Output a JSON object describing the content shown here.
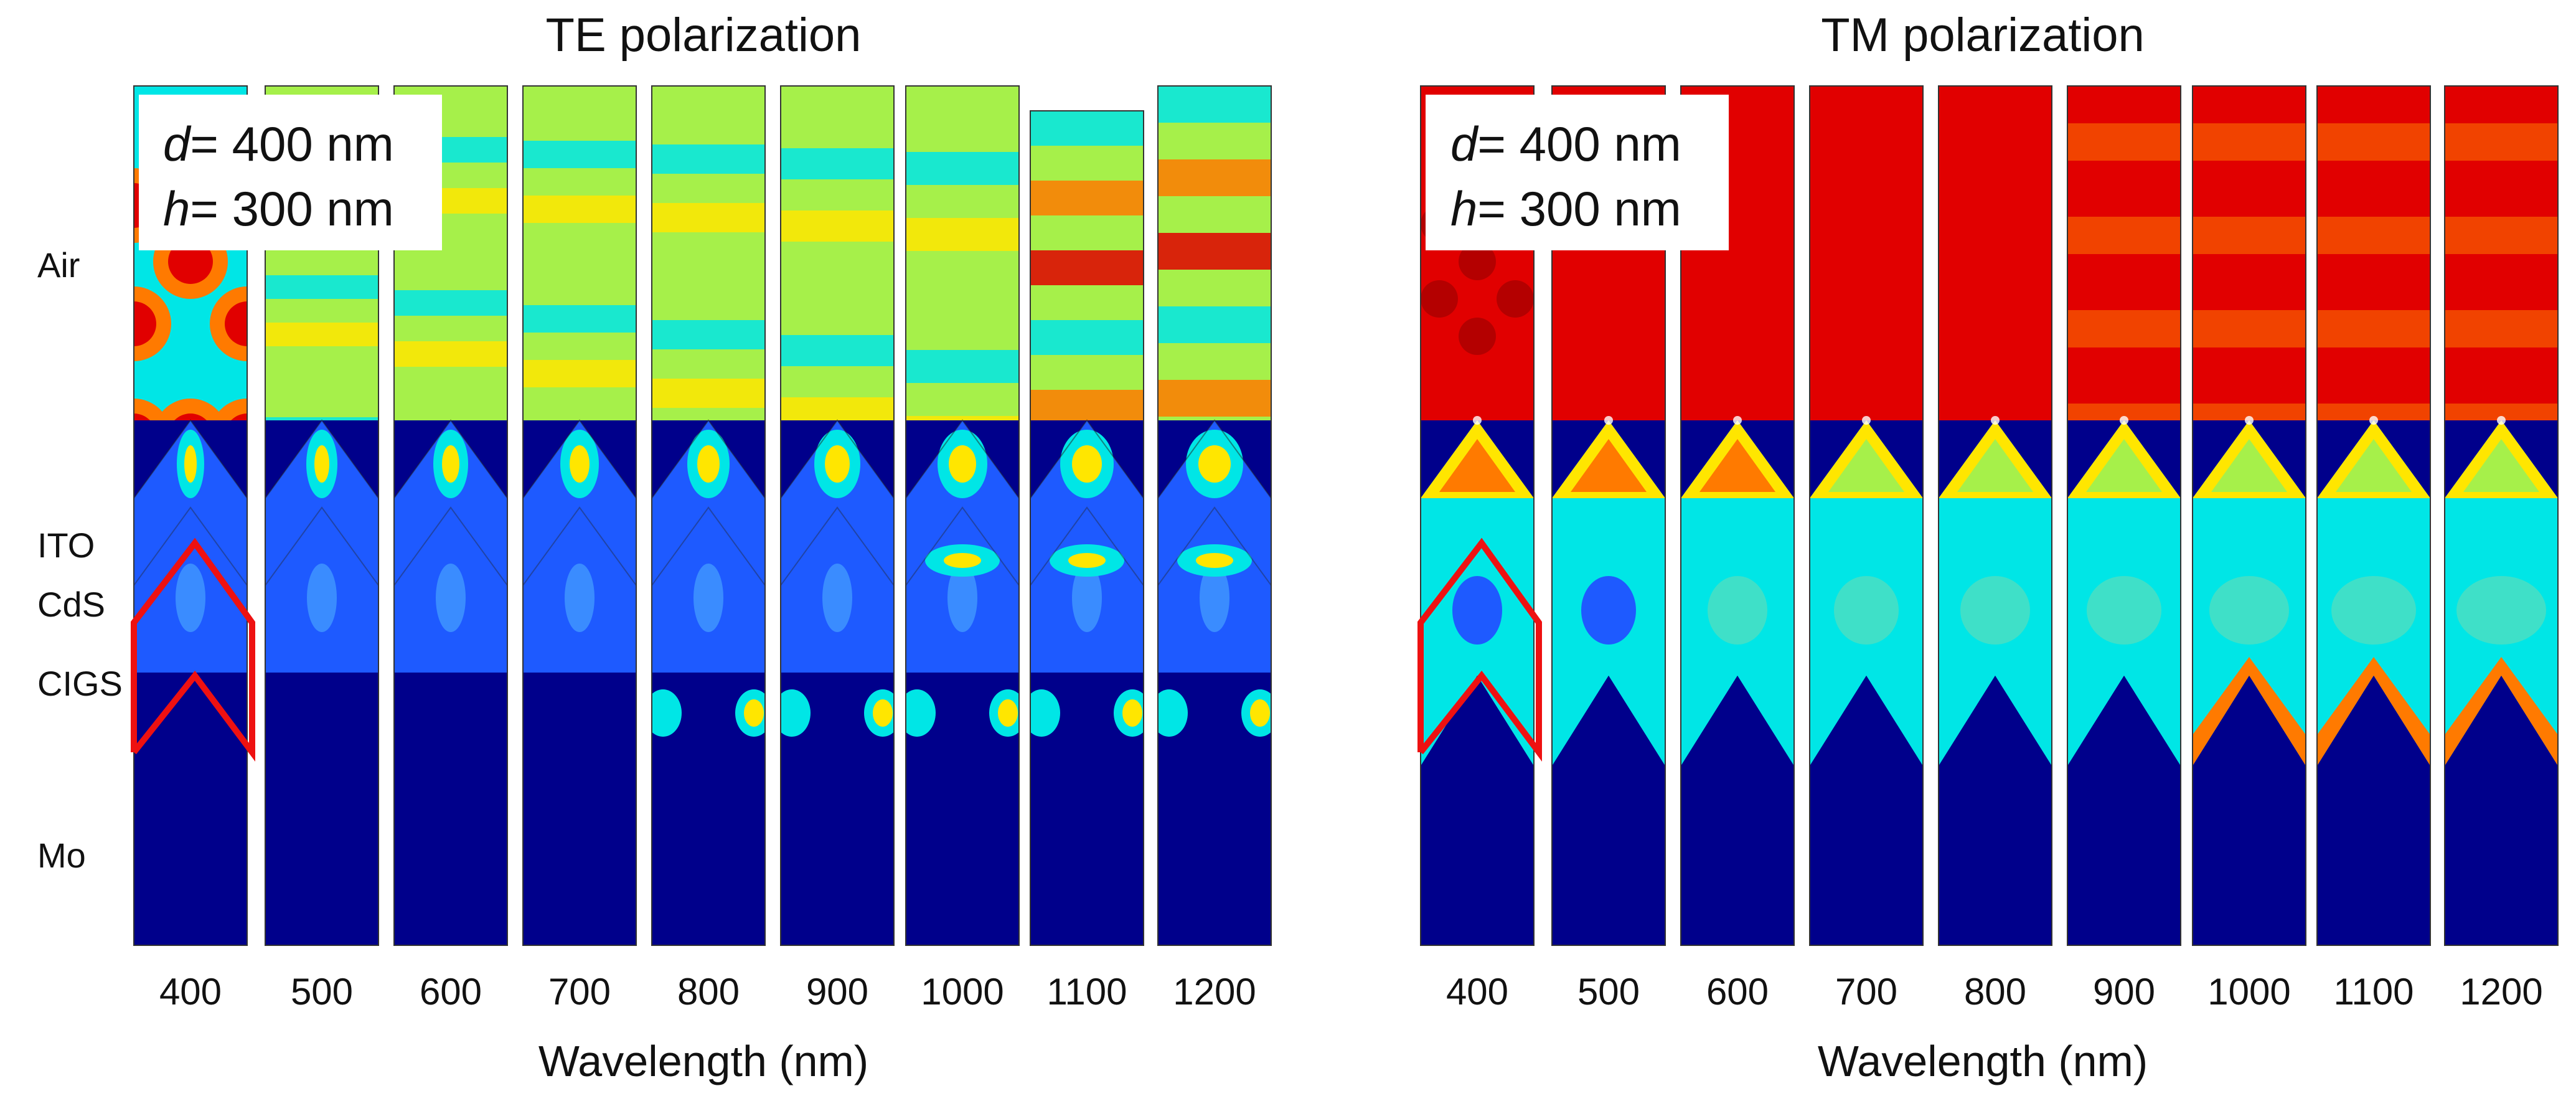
{
  "panels": [
    {
      "title": "TE polarization",
      "mode": "TE",
      "xlabel": "Wavelength (nm)",
      "params": [
        {
          "symbol": "d",
          "value": "= 400 nm"
        },
        {
          "symbol": "h",
          "value": "= 300 nm"
        }
      ]
    },
    {
      "title": "TM polarization",
      "mode": "TM",
      "xlabel": "Wavelength (nm)",
      "params": [
        {
          "symbol": "d",
          "value": "= 400 nm"
        },
        {
          "symbol": "h",
          "value": "= 300 nm"
        }
      ]
    }
  ],
  "wavelengths": [
    "400",
    "500",
    "600",
    "700",
    "800",
    "900",
    "1000",
    "1100",
    "1200"
  ],
  "layers": [
    "Air",
    "ITO",
    "CdS",
    "CIGS",
    "Mo"
  ],
  "colormap": {
    "low": "#00008b",
    "mid_low": "#1e5aff",
    "mid": "#00e6e6",
    "mid_high": "#a6f04a",
    "high_mid": "#ffe600",
    "high": "#ff7a00",
    "max": "#e10000",
    "outline": "#ee1111"
  }
}
